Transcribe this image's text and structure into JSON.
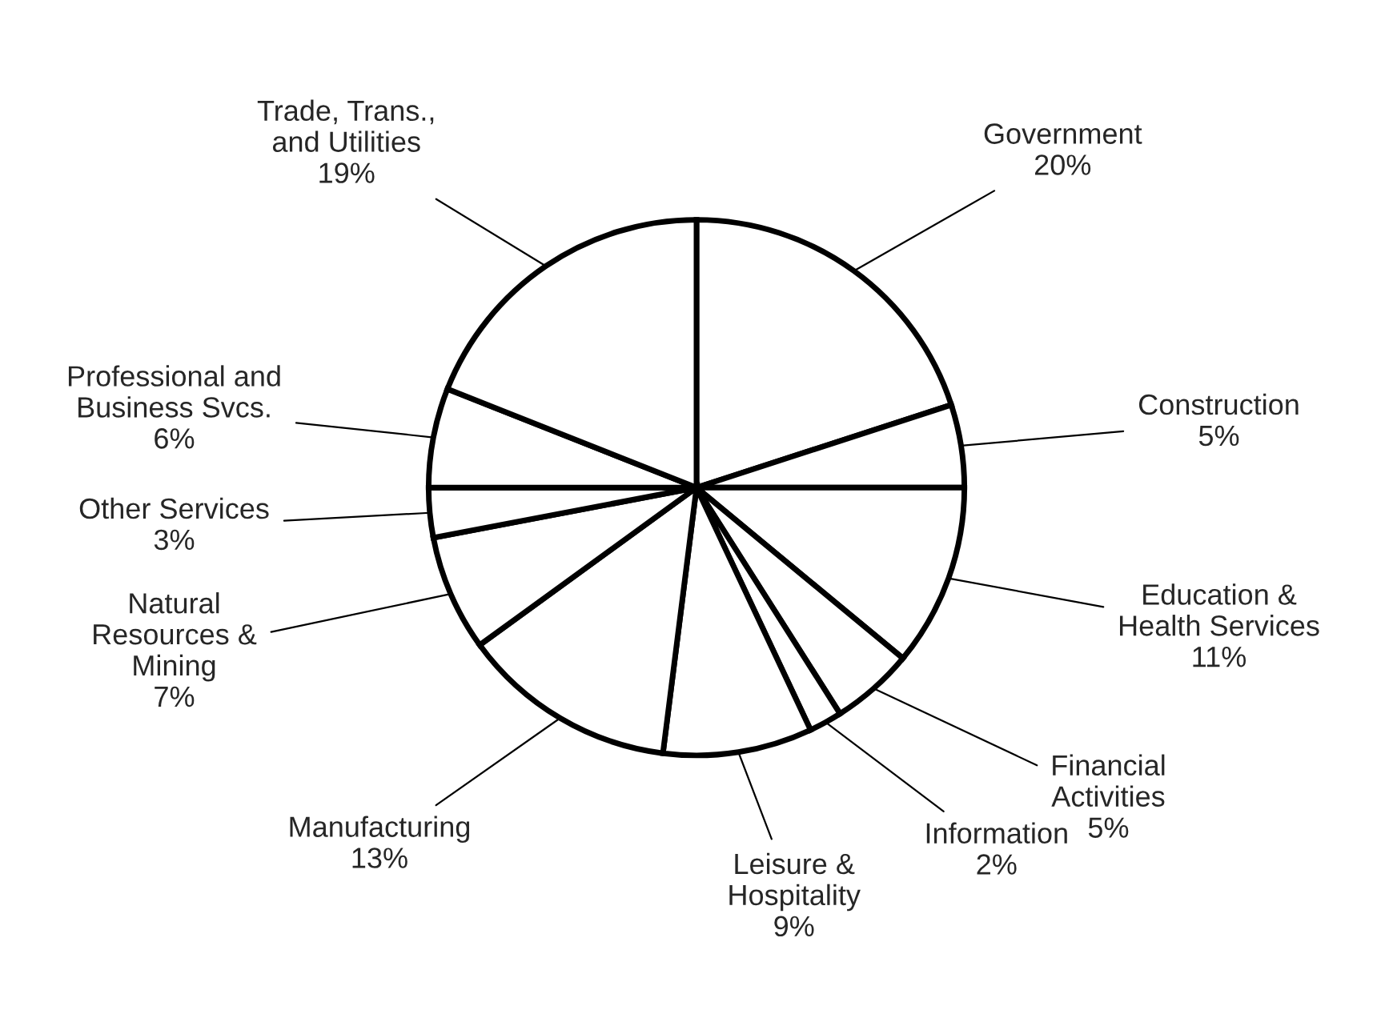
{
  "chart_data": {
    "type": "pie",
    "categories": [
      "Government",
      "Construction",
      "Education &\nHealth Services",
      "Financial\nActivities",
      "Information",
      "Leisure &\nHospitality",
      "Manufacturing",
      "Natural\nResources &\nMining",
      "Other Services",
      "Professional and\nBusiness Svcs.",
      "Trade, Trans.,\nand Utilities"
    ],
    "values": [
      20,
      5,
      11,
      5,
      2,
      9,
      13,
      7,
      3,
      6,
      19
    ],
    "value_labels": [
      "20%",
      "5%",
      "11%",
      "5%",
      "2%",
      "9%",
      "13%",
      "7%",
      "3%",
      "6%",
      "19%"
    ],
    "colors": [
      "#ffffff",
      "#ffffff",
      "#ffffff",
      "#ffffff",
      "#ffffff",
      "#ffffff",
      "#ffffff",
      "#ffffff",
      "#ffffff",
      "#ffffff",
      "#ffffff"
    ]
  }
}
